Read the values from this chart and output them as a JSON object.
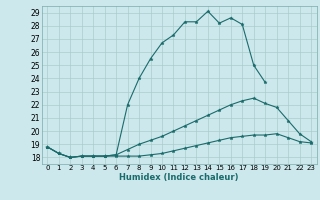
{
  "xlabel": "Humidex (Indice chaleur)",
  "bg_color": "#cce8ec",
  "grid_color": "#aacccc",
  "line_color": "#1a6b6b",
  "xlim": [
    -0.5,
    23.5
  ],
  "ylim": [
    17.5,
    29.5
  ],
  "yticks": [
    18,
    19,
    20,
    21,
    22,
    23,
    24,
    25,
    26,
    27,
    28,
    29
  ],
  "xticks": [
    0,
    1,
    2,
    3,
    4,
    5,
    6,
    7,
    8,
    9,
    10,
    11,
    12,
    13,
    14,
    15,
    16,
    17,
    18,
    19,
    20,
    21,
    22,
    23
  ],
  "series": [
    [
      18.8,
      18.3,
      18.0,
      18.1,
      18.1,
      18.1,
      18.1,
      18.1,
      18.1,
      18.2,
      18.3,
      18.5,
      18.7,
      18.9,
      19.1,
      19.3,
      19.5,
      19.6,
      19.7,
      19.7,
      19.8,
      19.5,
      19.2,
      19.1
    ],
    [
      18.8,
      18.3,
      18.0,
      18.1,
      18.1,
      18.1,
      18.2,
      18.6,
      19.0,
      19.3,
      19.6,
      20.0,
      20.4,
      20.8,
      21.2,
      21.6,
      22.0,
      22.3,
      22.5,
      22.1,
      21.8,
      20.8,
      19.8,
      19.2
    ],
    [
      18.8,
      18.3,
      18.0,
      18.1,
      18.1,
      18.1,
      18.2,
      22.0,
      24.0,
      25.5,
      26.7,
      27.3,
      28.3,
      28.3,
      29.1,
      28.2,
      28.6,
      28.1,
      25.0,
      23.7,
      null,
      null,
      null,
      null
    ]
  ]
}
